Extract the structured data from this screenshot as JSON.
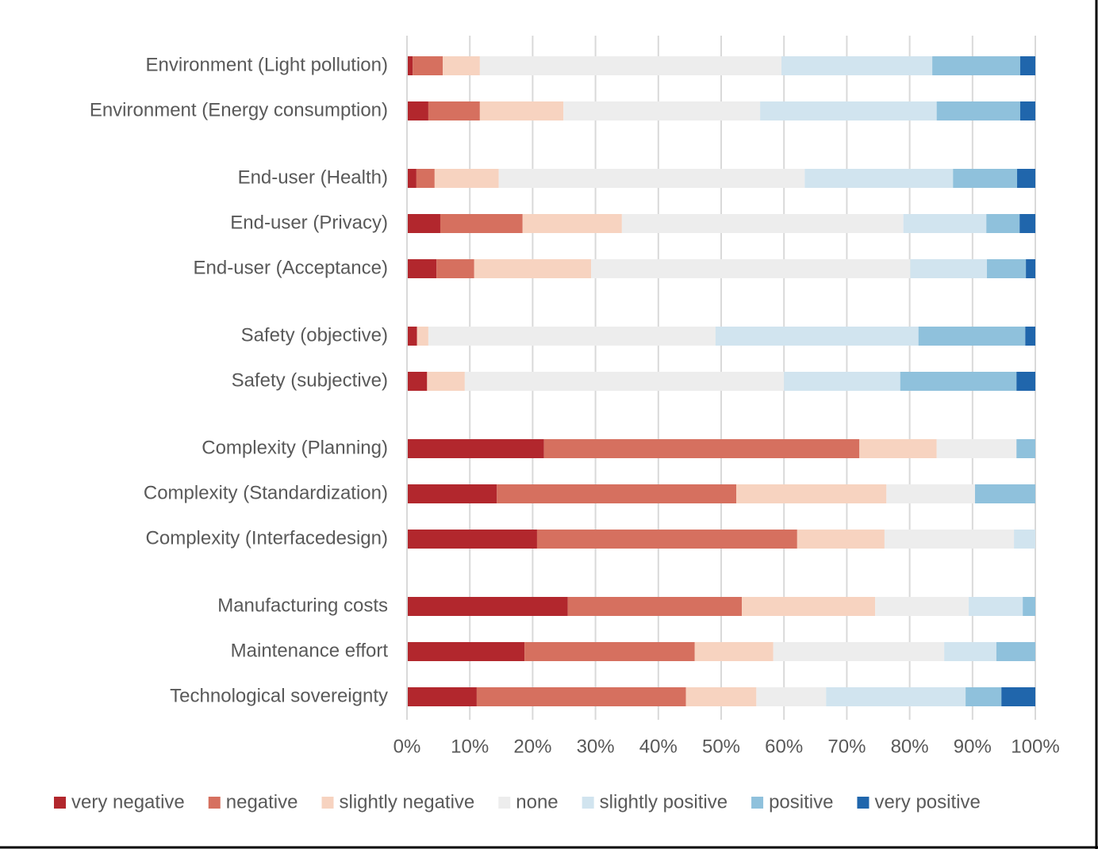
{
  "chart_data": {
    "type": "stacked-bar-horizontal",
    "categories": [
      "Environment (Light pollution)",
      "Environment (Energy consumption)",
      null,
      "End-user (Health)",
      "End-user (Privacy)",
      "End-user (Acceptance)",
      null,
      "Safety (objective)",
      "Safety (subjective)",
      null,
      "Complexity (Planning)",
      "Complexity (Standardization)",
      "Complexity (Interfacedesign)",
      null,
      "Manufacturing costs",
      "Maintenance effort",
      "Technological sovereignty"
    ],
    "series": [
      {
        "name": "very negative",
        "color": "#b2272d",
        "values": [
          0.9,
          3.4,
          null,
          1.5,
          5.3,
          4.7,
          null,
          1.6,
          3.2,
          null,
          21.8,
          14.3,
          20.7,
          null,
          25.6,
          18.7,
          11.1
        ]
      },
      {
        "name": "negative",
        "color": "#d6705f",
        "values": [
          4.8,
          8.2,
          null,
          2.9,
          13.1,
          6.0,
          null,
          0,
          0,
          null,
          50.2,
          38.1,
          41.4,
          null,
          27.7,
          27.1,
          33.3
        ]
      },
      {
        "name": "slightly negative",
        "color": "#f7d3c0",
        "values": [
          5.9,
          13.3,
          null,
          10.2,
          15.8,
          18.6,
          null,
          1.8,
          6.0,
          null,
          12.3,
          23.9,
          13.9,
          null,
          21.2,
          12.5,
          11.2
        ]
      },
      {
        "name": "none",
        "color": "#ededed",
        "values": [
          48.0,
          31.3,
          null,
          48.7,
          44.8,
          50.8,
          null,
          45.7,
          50.8,
          null,
          12.7,
          14.1,
          20.6,
          null,
          14.9,
          27.2,
          11.1
        ]
      },
      {
        "name": "slightly positive",
        "color": "#d1e4ef",
        "values": [
          24.0,
          28.1,
          null,
          23.6,
          13.2,
          12.2,
          null,
          32.3,
          18.5,
          null,
          0,
          0,
          3.4,
          null,
          8.6,
          8.3,
          22.2
        ]
      },
      {
        "name": "positive",
        "color": "#8fc1dc",
        "values": [
          14.0,
          13.3,
          null,
          10.2,
          5.3,
          6.2,
          null,
          17.0,
          18.5,
          null,
          3.0,
          9.6,
          0,
          null,
          2.0,
          6.2,
          5.7
        ]
      },
      {
        "name": "very positive",
        "color": "#2066ac",
        "values": [
          2.4,
          2.4,
          null,
          2.9,
          2.5,
          1.5,
          null,
          1.6,
          3.0,
          null,
          0,
          0,
          0,
          null,
          0,
          0,
          5.4
        ]
      }
    ],
    "xlim": [
      0,
      100
    ],
    "xticks": [
      {
        "value": 0,
        "label": "0%"
      },
      {
        "value": 10,
        "label": "10%"
      },
      {
        "value": 20,
        "label": "20%"
      },
      {
        "value": 30,
        "label": "30%"
      },
      {
        "value": 40,
        "label": "40%"
      },
      {
        "value": 50,
        "label": "50%"
      },
      {
        "value": 60,
        "label": "60%"
      },
      {
        "value": 70,
        "label": "70%"
      },
      {
        "value": 80,
        "label": "80%"
      },
      {
        "value": 90,
        "label": "90%"
      },
      {
        "value": 100,
        "label": "100%"
      }
    ],
    "grid": true,
    "legend": "bottom"
  }
}
